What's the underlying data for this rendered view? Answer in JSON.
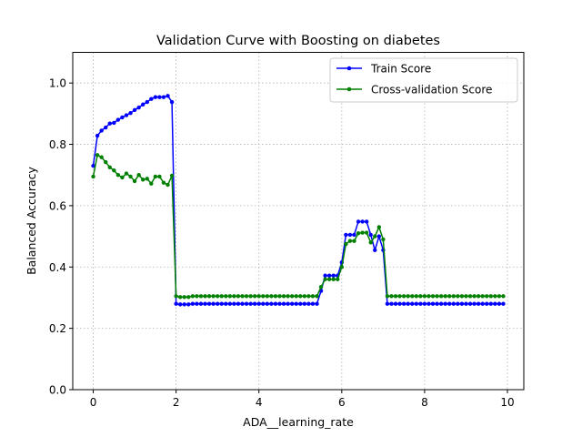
{
  "chart_data": {
    "type": "line",
    "title": "Validation Curve with Boosting on diabetes",
    "xlabel": "ADA__learning_rate",
    "ylabel": "Balanced Accuracy",
    "xlim": [
      -0.495,
      10.395
    ],
    "ylim": [
      0.0,
      1.1
    ],
    "xticks": [
      0,
      2,
      4,
      6,
      8,
      10
    ],
    "yticks": [
      0.0,
      0.2,
      0.4,
      0.6,
      0.8,
      1.0
    ],
    "xtick_labels": [
      "0",
      "2",
      "4",
      "6",
      "8",
      "10"
    ],
    "ytick_labels": [
      "0.0",
      "0.2",
      "0.4",
      "0.6",
      "0.8",
      "1.0"
    ],
    "grid": true,
    "legend_position": "top-right",
    "x": [
      0.0,
      0.1,
      0.2,
      0.3,
      0.4,
      0.5,
      0.6,
      0.7,
      0.8,
      0.9,
      1.0,
      1.1,
      1.2,
      1.3,
      1.4,
      1.5,
      1.6,
      1.7,
      1.8,
      1.9,
      2.0,
      2.1,
      2.2,
      2.3,
      2.4,
      2.5,
      2.6,
      2.7,
      2.8,
      2.9,
      3.0,
      3.1,
      3.2,
      3.3,
      3.4,
      3.5,
      3.6,
      3.7,
      3.8,
      3.9,
      4.0,
      4.1,
      4.2,
      4.3,
      4.4,
      4.5,
      4.6,
      4.7,
      4.8,
      4.9,
      5.0,
      5.1,
      5.2,
      5.3,
      5.4,
      5.5,
      5.6,
      5.7,
      5.8,
      5.9,
      6.0,
      6.1,
      6.2,
      6.3,
      6.4,
      6.5,
      6.6,
      6.7,
      6.8,
      6.9,
      7.0,
      7.1,
      7.2,
      7.3,
      7.4,
      7.5,
      7.6,
      7.7,
      7.8,
      7.9,
      8.0,
      8.1,
      8.2,
      8.3,
      8.4,
      8.5,
      8.6,
      8.7,
      8.8,
      8.9,
      9.0,
      9.1,
      9.2,
      9.3,
      9.4,
      9.5,
      9.6,
      9.7,
      9.8,
      9.9
    ],
    "series": [
      {
        "name": "Train Score",
        "color": "#0000ff",
        "values": [
          0.73,
          0.828,
          0.845,
          0.855,
          0.868,
          0.87,
          0.88,
          0.888,
          0.895,
          0.902,
          0.912,
          0.92,
          0.93,
          0.938,
          0.948,
          0.954,
          0.954,
          0.954,
          0.958,
          0.938,
          0.28,
          0.278,
          0.278,
          0.278,
          0.28,
          0.28,
          0.28,
          0.28,
          0.28,
          0.28,
          0.28,
          0.28,
          0.28,
          0.28,
          0.28,
          0.28,
          0.28,
          0.28,
          0.28,
          0.28,
          0.28,
          0.28,
          0.28,
          0.28,
          0.28,
          0.28,
          0.28,
          0.28,
          0.28,
          0.28,
          0.28,
          0.28,
          0.28,
          0.28,
          0.28,
          0.322,
          0.372,
          0.372,
          0.372,
          0.372,
          0.415,
          0.505,
          0.505,
          0.505,
          0.548,
          0.548,
          0.548,
          0.505,
          0.455,
          0.5,
          0.455,
          0.28,
          0.28,
          0.28,
          0.28,
          0.28,
          0.28,
          0.28,
          0.28,
          0.28,
          0.28,
          0.28,
          0.28,
          0.28,
          0.28,
          0.28,
          0.28,
          0.28,
          0.28,
          0.28,
          0.28,
          0.28,
          0.28,
          0.28,
          0.28,
          0.28,
          0.28,
          0.28,
          0.28,
          0.28
        ]
      },
      {
        "name": "Cross-validation Score",
        "color": "#008000",
        "values": [
          0.695,
          0.765,
          0.758,
          0.742,
          0.725,
          0.715,
          0.7,
          0.692,
          0.705,
          0.695,
          0.68,
          0.7,
          0.685,
          0.688,
          0.672,
          0.695,
          0.695,
          0.675,
          0.668,
          0.698,
          0.305,
          0.302,
          0.302,
          0.302,
          0.305,
          0.305,
          0.305,
          0.305,
          0.305,
          0.305,
          0.305,
          0.305,
          0.305,
          0.305,
          0.305,
          0.305,
          0.305,
          0.305,
          0.305,
          0.305,
          0.305,
          0.305,
          0.305,
          0.305,
          0.305,
          0.305,
          0.305,
          0.305,
          0.305,
          0.305,
          0.305,
          0.305,
          0.305,
          0.305,
          0.305,
          0.335,
          0.36,
          0.36,
          0.36,
          0.36,
          0.4,
          0.475,
          0.485,
          0.485,
          0.51,
          0.512,
          0.512,
          0.48,
          0.5,
          0.53,
          0.49,
          0.305,
          0.305,
          0.305,
          0.305,
          0.305,
          0.305,
          0.305,
          0.305,
          0.305,
          0.305,
          0.305,
          0.305,
          0.305,
          0.305,
          0.305,
          0.305,
          0.305,
          0.305,
          0.305,
          0.305,
          0.305,
          0.305,
          0.305,
          0.305,
          0.305,
          0.305,
          0.305,
          0.305,
          0.305
        ]
      }
    ]
  }
}
